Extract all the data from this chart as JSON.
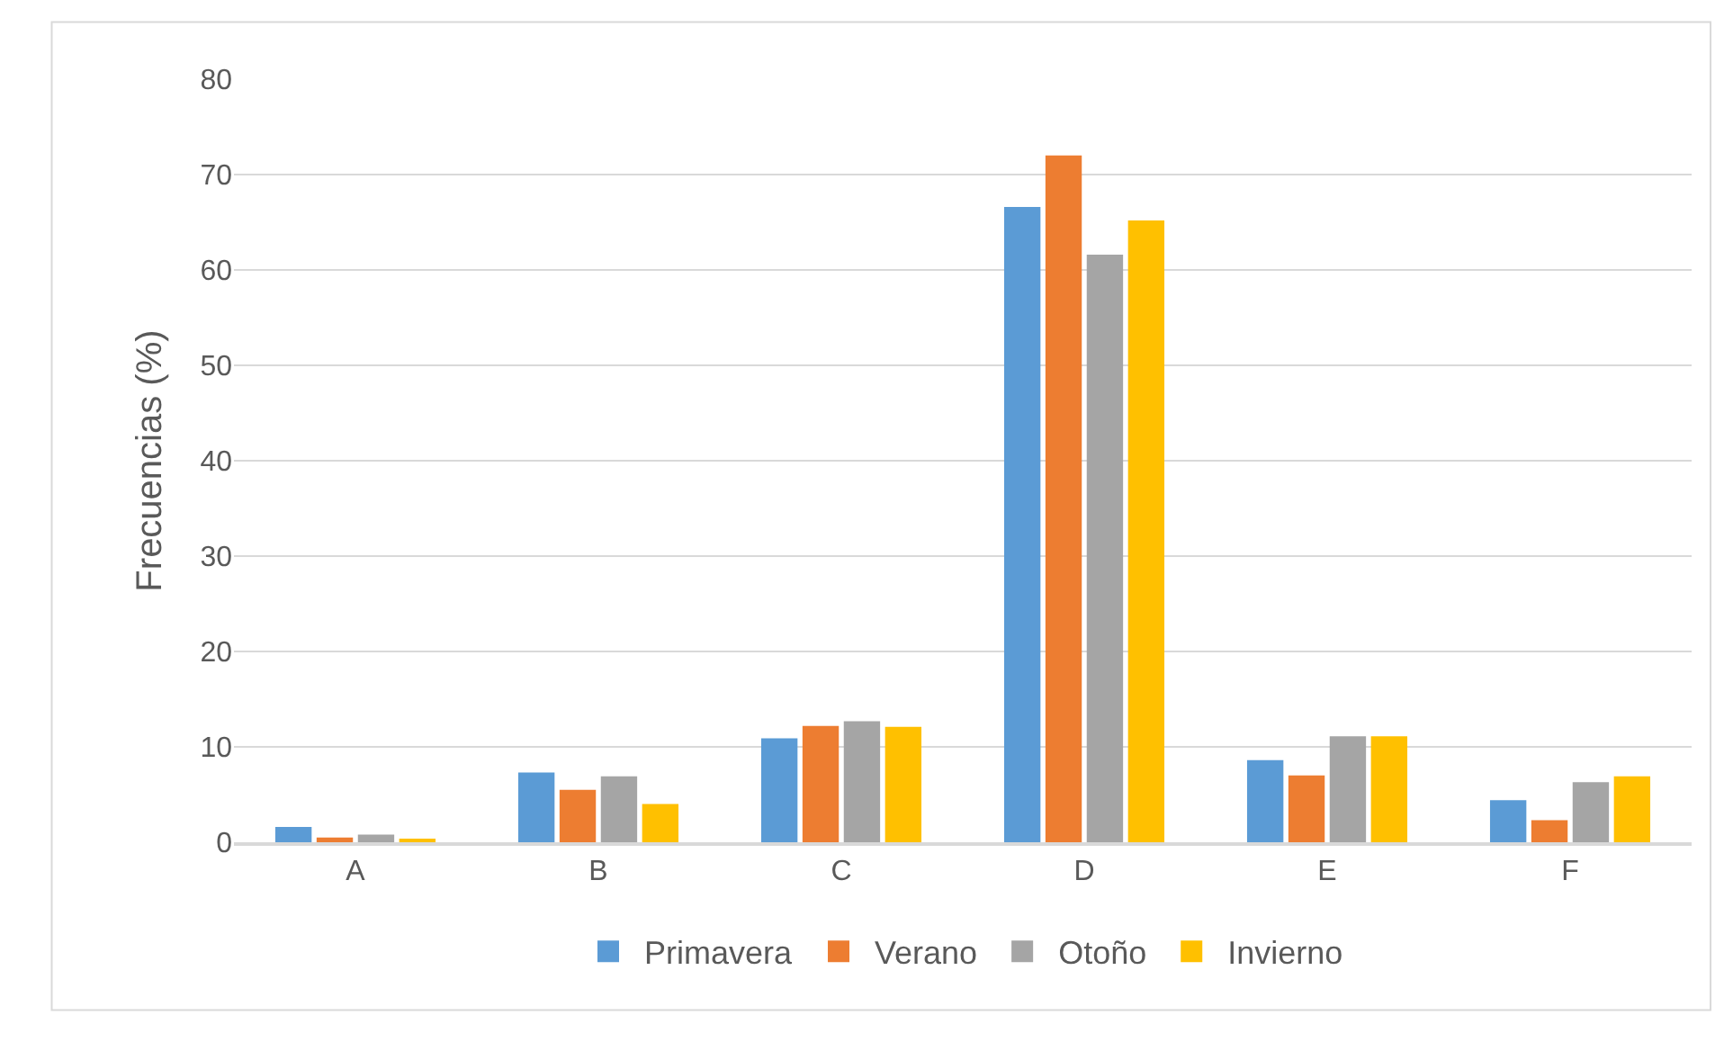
{
  "chart_data": {
    "type": "bar",
    "ylabel": "Frecuencias (%)",
    "categories": [
      "A",
      "B",
      "C",
      "D",
      "E",
      "F"
    ],
    "series": [
      {
        "name": "Primavera",
        "color": "#5b9bd5",
        "values": [
          1.6,
          7.3,
          10.9,
          66.6,
          8.6,
          4.4
        ]
      },
      {
        "name": "Verano",
        "color": "#ed7d31",
        "values": [
          0.5,
          5.5,
          12.2,
          72.0,
          7.0,
          2.3
        ]
      },
      {
        "name": "Otoño",
        "color": "#a5a5a5",
        "values": [
          0.8,
          6.9,
          12.7,
          61.6,
          11.1,
          6.3
        ]
      },
      {
        "name": "Invierno",
        "color": "#ffc000",
        "values": [
          0.2,
          4.0,
          12.1,
          65.2,
          11.1,
          6.9
        ]
      }
    ],
    "ylim": [
      0,
      80
    ],
    "yticks": [
      0,
      10,
      20,
      30,
      40,
      50,
      60,
      70,
      80
    ],
    "grid": "y",
    "legend": "bottom"
  }
}
